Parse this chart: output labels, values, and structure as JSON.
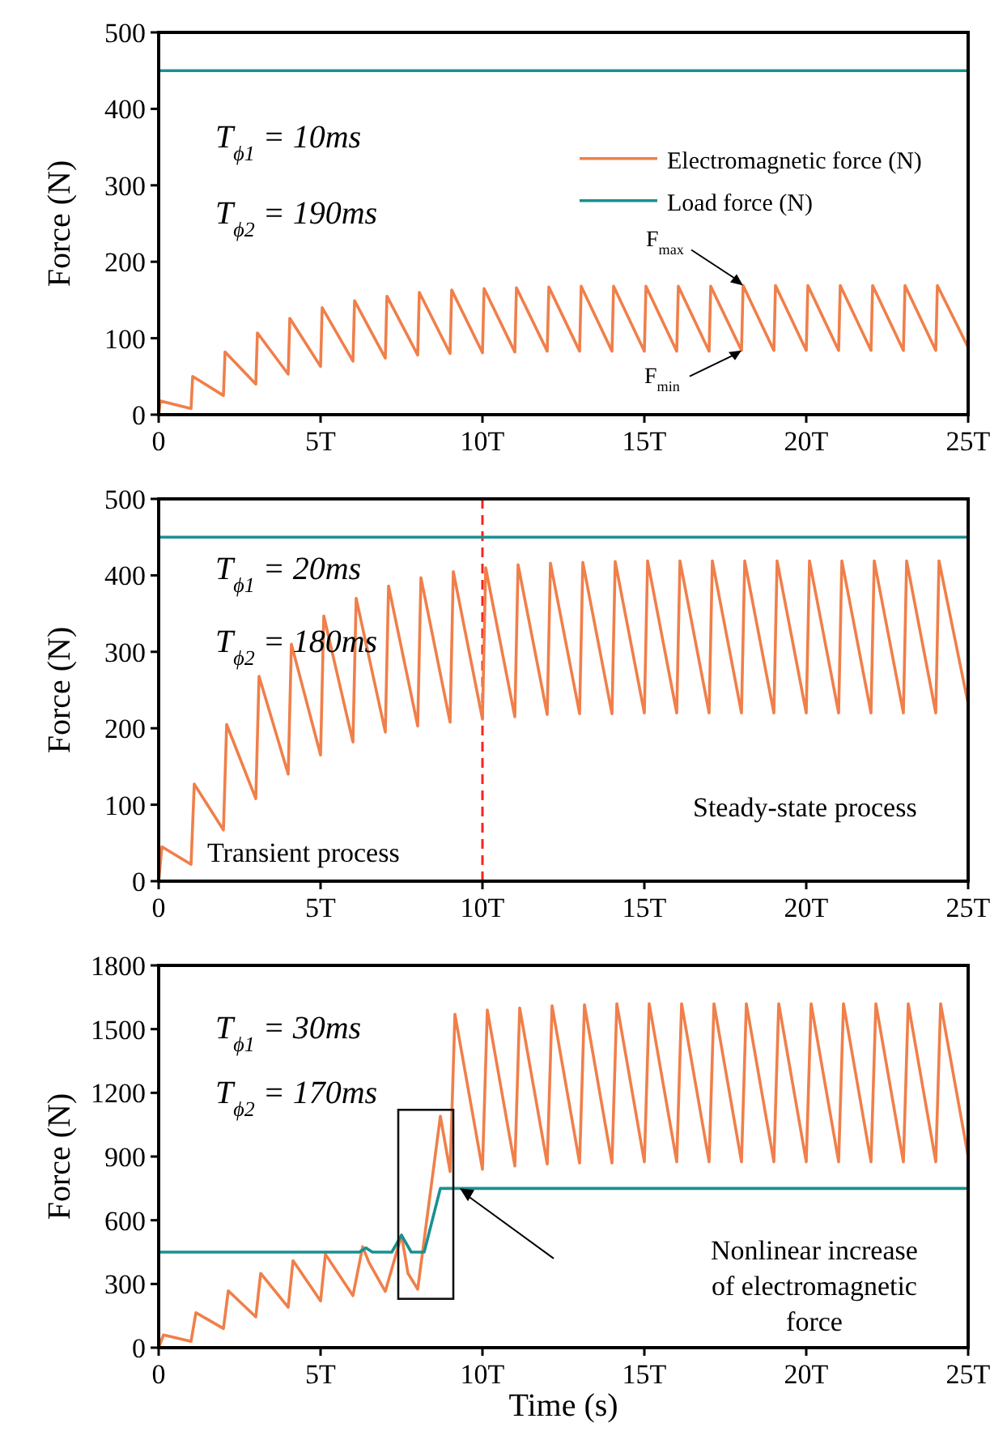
{
  "chart_data": [
    {
      "type": "line",
      "ylabel": "Force (N)",
      "xlim": [
        0,
        25
      ],
      "ylim": [
        0,
        500
      ],
      "xticks": [
        {
          "value": 0,
          "label": "0"
        },
        {
          "value": 5,
          "label": "5T"
        },
        {
          "value": 10,
          "label": "10T"
        },
        {
          "value": 15,
          "label": "15T"
        },
        {
          "value": 20,
          "label": "20T"
        },
        {
          "value": 25,
          "label": "25T"
        }
      ],
      "yticks": [
        0,
        100,
        200,
        300,
        400,
        500
      ],
      "legend": "top right",
      "annotations": [
        "T$_{ϕ1}$ = 10ms",
        "T$_{ϕ2}$ = 190ms",
        {
          "text": "F$_{max}$",
          "x": 18.05,
          "y": 169
        },
        {
          "text": "F$_{min}$",
          "x": 18,
          "y": 84
        }
      ],
      "series": [
        {
          "name": "Electromagnetic force (N)",
          "color": "#f07f4a",
          "x": [
            0,
            0.05,
            1,
            1.05,
            2,
            2.05,
            3,
            3.05,
            4,
            4.05,
            5,
            5.05,
            6,
            6.05,
            7,
            7.05,
            8,
            8.05,
            9,
            9.05,
            10,
            10.05,
            11,
            11.05,
            12,
            12.05,
            13,
            13.05,
            14,
            14.05,
            15,
            15.05,
            16,
            16.05,
            17,
            17.05,
            18,
            18.05,
            19,
            19.05,
            20,
            20.05,
            21,
            21.05,
            22,
            22.05,
            23,
            23.05,
            24,
            24.05,
            25
          ],
          "values": [
            0,
            18,
            8,
            50,
            25,
            82,
            40,
            107,
            53,
            126,
            63,
            140,
            70,
            149,
            74,
            155,
            78,
            160,
            80,
            163,
            81,
            165,
            82,
            166,
            83,
            167,
            83,
            168,
            83,
            168,
            83,
            168,
            83,
            168,
            83,
            168,
            84,
            169,
            84,
            169,
            84,
            169,
            84,
            169,
            84,
            169,
            84,
            169,
            84,
            169,
            88
          ]
        },
        {
          "name": "Load force (N)",
          "color": "#1a9090",
          "x": [
            0,
            25
          ],
          "values": [
            450,
            450
          ]
        }
      ]
    },
    {
      "type": "line",
      "ylabel": "Force (N)",
      "xlim": [
        0,
        25
      ],
      "ylim": [
        0,
        500
      ],
      "xticks": [
        {
          "value": 0,
          "label": "0"
        },
        {
          "value": 5,
          "label": "5T"
        },
        {
          "value": 10,
          "label": "10T"
        },
        {
          "value": 15,
          "label": "15T"
        },
        {
          "value": 20,
          "label": "20T"
        },
        {
          "value": 25,
          "label": "25T"
        }
      ],
      "yticks": [
        0,
        100,
        200,
        300,
        400,
        500
      ],
      "annotations": [
        "T$_{ϕ1}$ = 20ms",
        "T$_{ϕ2}$ = 180ms",
        "Transient process",
        "Steady-state process"
      ],
      "ref_lines": [
        {
          "axis": "x",
          "value": 10,
          "color": "#ff2020",
          "line_style": "dashed"
        }
      ],
      "series": [
        {
          "color": "#f07f4a",
          "x": [
            0,
            0.1,
            1,
            1.1,
            2,
            2.1,
            3,
            3.1,
            4,
            4.1,
            5,
            5.1,
            6,
            6.1,
            7,
            7.1,
            8,
            8.1,
            9,
            9.1,
            10,
            10.1,
            11,
            11.1,
            12,
            12.1,
            13,
            13.1,
            14,
            14.1,
            15,
            15.1,
            16,
            16.1,
            17,
            17.1,
            18,
            18.1,
            19,
            19.1,
            20,
            20.1,
            21,
            21.1,
            22,
            22.1,
            23,
            23.1,
            24,
            24.1,
            25
          ],
          "values": [
            0,
            45,
            22,
            127,
            67,
            205,
            108,
            268,
            140,
            310,
            165,
            347,
            182,
            370,
            195,
            386,
            203,
            397,
            208,
            405,
            212,
            410,
            215,
            414,
            218,
            416,
            219,
            417,
            219,
            418,
            220,
            419,
            220,
            419,
            220,
            419,
            220,
            419,
            220,
            419,
            220,
            419,
            220,
            419,
            220,
            419,
            220,
            419,
            220,
            419,
            232
          ]
        },
        {
          "color": "#1a9090",
          "x": [
            0,
            25
          ],
          "values": [
            450,
            450
          ]
        }
      ]
    },
    {
      "type": "line",
      "xlabel": "Time (s)",
      "ylabel": "Force (N)",
      "xlim": [
        0,
        25
      ],
      "ylim": [
        0,
        1800
      ],
      "xticks": [
        {
          "value": 0,
          "label": "0"
        },
        {
          "value": 5,
          "label": "5T"
        },
        {
          "value": 10,
          "label": "10T"
        },
        {
          "value": 15,
          "label": "15T"
        },
        {
          "value": 20,
          "label": "20T"
        },
        {
          "value": 25,
          "label": "25T"
        }
      ],
      "yticks": [
        0,
        300,
        600,
        900,
        1200,
        1500,
        1800
      ],
      "annotations": [
        "T$_{ϕ1}$ = 30ms",
        "T$_{ϕ2}$ = 170ms",
        "Nonlinear increase of electromagnetic force"
      ],
      "series": [
        {
          "color": "#f07f4a",
          "x": [
            0,
            0.15,
            1,
            1.15,
            2,
            2.15,
            3,
            3.15,
            4,
            4.15,
            5,
            5.15,
            6,
            6.3,
            6.5,
            7,
            7.5,
            7.7,
            8,
            8.7,
            9,
            9.15,
            10,
            10.15,
            11,
            11.15,
            12,
            12.15,
            13,
            13.15,
            14,
            14.15,
            15,
            15.15,
            16,
            16.15,
            17,
            17.15,
            18,
            18.15,
            19,
            19.15,
            20,
            20.15,
            21,
            21.15,
            22,
            22.15,
            23,
            23.15,
            24,
            24.15,
            25
          ],
          "values": [
            0,
            60,
            30,
            165,
            90,
            268,
            145,
            350,
            190,
            410,
            220,
            440,
            245,
            475,
            400,
            265,
            530,
            350,
            275,
            1090,
            830,
            1570,
            840,
            1590,
            855,
            1600,
            865,
            1610,
            870,
            1615,
            870,
            1620,
            875,
            1620,
            875,
            1620,
            875,
            1620,
            875,
            1620,
            875,
            1620,
            875,
            1620,
            875,
            1620,
            875,
            1620,
            875,
            1620,
            875,
            1620,
            900
          ]
        },
        {
          "color": "#1a9090",
          "x": [
            0,
            6.2,
            6.4,
            6.6,
            7.2,
            7.5,
            7.8,
            8.2,
            8.7,
            25
          ],
          "values": [
            450,
            450,
            470,
            450,
            450,
            530,
            450,
            450,
            750,
            750
          ]
        }
      ]
    }
  ]
}
